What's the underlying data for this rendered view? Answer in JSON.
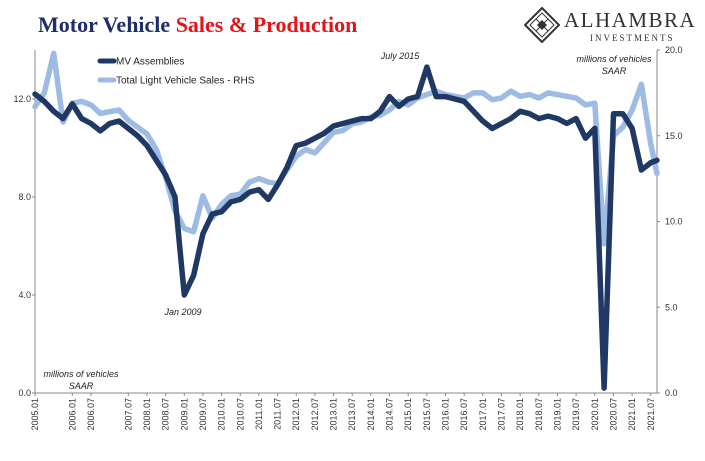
{
  "title": {
    "part1": "Motor Vehicle",
    "part2": "Sales & Production"
  },
  "logo": {
    "name": "ALHAMBRA",
    "sub": "INVESTMENTS",
    "icon": "diamond-logo-icon"
  },
  "chart_data": {
    "type": "line",
    "x": [
      "2005.01",
      "2005.04",
      "2005.07",
      "2005.10",
      "2006.01",
      "2006.04",
      "2006.07",
      "2006.10",
      "2007.01",
      "2007.04",
      "2007.07",
      "2007.10",
      "2008.01",
      "2008.04",
      "2008.07",
      "2008.10",
      "2009.01",
      "2009.04",
      "2009.07",
      "2009.10",
      "2010.01",
      "2010.04",
      "2010.07",
      "2010.10",
      "2011.01",
      "2011.04",
      "2011.07",
      "2011.10",
      "2012.01",
      "2012.04",
      "2012.07",
      "2012.10",
      "2013.01",
      "2013.04",
      "2013.07",
      "2013.10",
      "2014.01",
      "2014.04",
      "2014.07",
      "2014.10",
      "2015.01",
      "2015.04",
      "2015.07",
      "2015.10",
      "2016.01",
      "2016.04",
      "2016.07",
      "2016.10",
      "2017.01",
      "2017.04",
      "2017.07",
      "2017.10",
      "2018.01",
      "2018.04",
      "2018.07",
      "2018.10",
      "2019.01",
      "2019.04",
      "2019.07",
      "2019.10",
      "2020.01",
      "2020.04",
      "2020.07",
      "2020.10",
      "2021.01",
      "2021.04",
      "2021.07",
      "2021.09"
    ],
    "xticks": [
      "2005.01",
      "2006.01",
      "2006.07",
      "2007.07",
      "2008.01",
      "2008.07",
      "2009.01",
      "2009.07",
      "2010.01",
      "2010.07",
      "2011.01",
      "2011.07",
      "2012.01",
      "2012.07",
      "2013.01",
      "2013.07",
      "2014.01",
      "2014.07",
      "2015.01",
      "2015.07",
      "2016.01",
      "2016.07",
      "2017.01",
      "2017.07",
      "2018.01",
      "2018.07",
      "2019.01",
      "2019.07",
      "2020.01",
      "2020.07",
      "2021.01",
      "2021.07"
    ],
    "series": [
      {
        "name": "MV Assemblies",
        "color": "#1f3864",
        "axis": "left",
        "values": [
          12.2,
          11.9,
          11.5,
          11.2,
          11.8,
          11.2,
          11.0,
          10.7,
          11.0,
          11.1,
          10.8,
          10.5,
          10.1,
          9.5,
          8.9,
          8.0,
          4.0,
          4.8,
          6.5,
          7.3,
          7.4,
          7.8,
          7.9,
          8.2,
          8.3,
          7.9,
          8.5,
          9.2,
          10.1,
          10.2,
          10.4,
          10.6,
          10.9,
          11.0,
          11.1,
          11.2,
          11.2,
          11.5,
          12.1,
          11.7,
          12.0,
          12.1,
          13.3,
          12.1,
          12.1,
          12.0,
          11.9,
          11.5,
          11.1,
          10.8,
          11.0,
          11.2,
          11.5,
          11.4,
          11.2,
          11.3,
          11.2,
          11.0,
          11.2,
          10.4,
          10.8,
          0.2,
          11.4,
          11.4,
          10.8,
          9.1,
          9.4,
          9.5
        ]
      },
      {
        "name": "Total Light Vehicle Sales - RHS",
        "color": "#9dbbe3",
        "axis": "right",
        "values": [
          16.7,
          17.5,
          19.8,
          15.8,
          16.9,
          17.0,
          16.8,
          16.3,
          16.4,
          16.5,
          15.9,
          15.5,
          15.1,
          14.2,
          12.6,
          10.6,
          9.6,
          9.4,
          11.5,
          10.2,
          11.0,
          11.5,
          11.6,
          12.3,
          12.5,
          12.3,
          12.2,
          13.0,
          13.8,
          14.2,
          14.0,
          14.6,
          15.2,
          15.3,
          15.7,
          15.8,
          16.1,
          16.2,
          16.5,
          17.0,
          16.8,
          17.2,
          17.4,
          17.6,
          17.4,
          17.3,
          17.2,
          17.5,
          17.5,
          17.1,
          17.2,
          17.6,
          17.3,
          17.4,
          17.2,
          17.5,
          17.4,
          17.3,
          17.2,
          16.8,
          16.9,
          8.7,
          15.0,
          15.5,
          16.5,
          18.0,
          14.5,
          12.8
        ]
      }
    ],
    "yleft": {
      "lim": [
        0,
        14
      ],
      "ticks": [
        "0.0",
        "4.0",
        "8.0",
        "12.0"
      ]
    },
    "yright": {
      "lim": [
        0,
        20
      ],
      "ticks": [
        "0.0",
        "5.0",
        "10.0",
        "15.0",
        "20.0"
      ]
    },
    "legend_position": "top-left",
    "annotations": {
      "july2015": "July 2015",
      "jan2009": "Jan 2009",
      "right_units_1": "millions of vehicles",
      "right_units_2": "SAAR",
      "left_units_1": "millions of vehicles",
      "left_units_2": "SAAR"
    }
  }
}
